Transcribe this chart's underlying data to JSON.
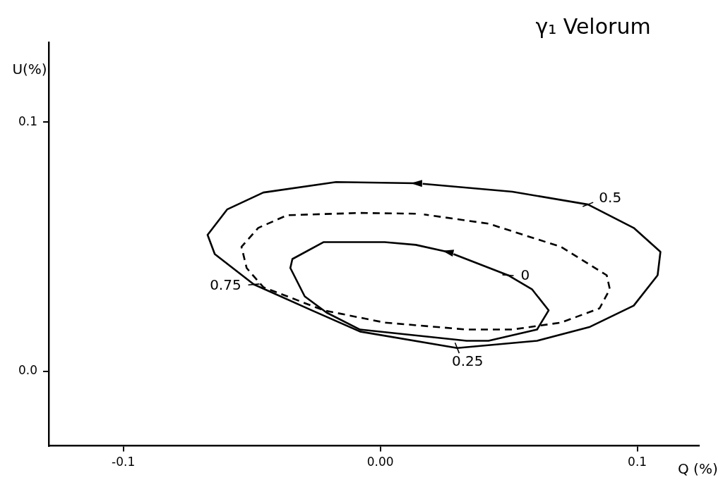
{
  "chart_data": {
    "type": "line",
    "title": "γ₁ Velorum",
    "xlabel": "Q (%)",
    "ylabel": "U(%)",
    "xlim": [
      -0.129,
      0.124
    ],
    "ylim": [
      -0.03,
      0.132
    ],
    "xticks": [
      -0.1,
      {
        "value": 0,
        "label": "0.00"
      },
      0.1
    ],
    "yticks": [
      {
        "value": 0,
        "label": "0.0"
      },
      0.1
    ],
    "grid": false,
    "legend": false,
    "marker": "none",
    "line_style": "solid",
    "series": [
      {
        "color": "#000000",
        "x": [
          0.0138,
          -0.0172,
          -0.0455,
          -0.0596,
          -0.0672,
          -0.0644,
          -0.0492,
          -0.0266,
          -0.0079,
          0.0299,
          0.061,
          0.0816,
          0.0986,
          0.1079,
          0.109,
          0.0986,
          0.0808,
          0.0514,
          0.0165
        ],
        "values": [
          0.0754,
          0.0759,
          0.0717,
          0.0649,
          0.0547,
          0.047,
          0.0348,
          0.0244,
          0.0159,
          0.0093,
          0.0122,
          0.0178,
          0.0263,
          0.0385,
          0.0479,
          0.0575,
          0.0669,
          0.072,
          0.0752
        ]
      },
      {
        "color": "#000000",
        "line_style": "dashed",
        "x": [
          0.0138,
          -0.0079,
          -0.0362,
          -0.0475,
          -0.054,
          -0.052,
          -0.0455,
          -0.022,
          0.0017,
          0.0336,
          0.0514,
          0.0703,
          0.0853,
          0.0893,
          0.0881,
          0.0703,
          0.0421,
          0.017
        ],
        "values": [
          0.0632,
          0.0635,
          0.0626,
          0.0575,
          0.0499,
          0.0414,
          0.0337,
          0.0244,
          0.0195,
          0.0167,
          0.0167,
          0.0195,
          0.0252,
          0.0329,
          0.0385,
          0.0499,
          0.0592,
          0.0629
        ]
      },
      {
        "color": "#000000",
        "x": [
          0.026,
          0.0138,
          0.0017,
          -0.022,
          -0.0342,
          -0.035,
          -0.0294,
          -0.0209,
          -0.0079,
          0.0336,
          0.0421,
          0.061,
          0.0655,
          0.059,
          0.0497,
          0.0285
        ],
        "values": [
          0.0479,
          0.0507,
          0.0518,
          0.0518,
          0.045,
          0.0414,
          0.03,
          0.0235,
          0.0167,
          0.0122,
          0.0122,
          0.0167,
          0.0244,
          0.0329,
          0.0385,
          0.047
        ]
      }
    ],
    "annotations": [
      {
        "text": "0",
        "x": 0.0497,
        "y": 0.0385
      },
      {
        "text": "0.25",
        "x": 0.0299,
        "y": 0.0093
      },
      {
        "text": "0.5",
        "x": 0.0808,
        "y": 0.0669
      },
      {
        "text": "0.75",
        "x": -0.0492,
        "y": 0.0348
      }
    ]
  }
}
